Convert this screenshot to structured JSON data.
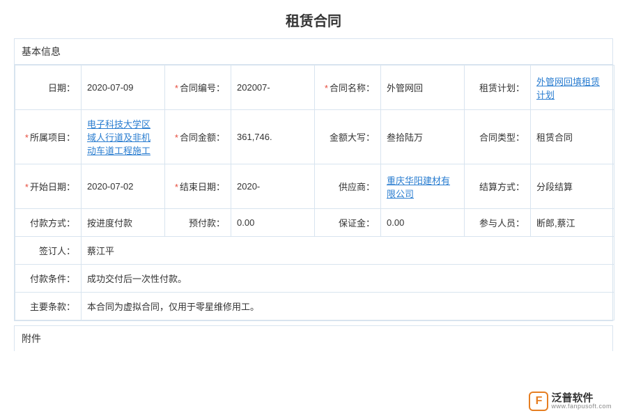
{
  "page": {
    "title": "租赁合同",
    "sections": {
      "basic": "基本信息",
      "attachment": "附件"
    }
  },
  "labels": {
    "date": "日期：",
    "contract_no": "合同编号：",
    "contract_name": "合同名称：",
    "lease_plan": "租赁计划：",
    "project": "所属项目：",
    "amount": "合同金额：",
    "amount_cn": "金额大写：",
    "contract_type": "合同类型：",
    "start_date": "开始日期：",
    "end_date": "结束日期：",
    "supplier": "供应商：",
    "settle_method": "结算方式：",
    "pay_method": "付款方式：",
    "prepay": "预付款：",
    "deposit": "保证金：",
    "participants": "参与人员：",
    "signer": "签订人：",
    "pay_terms": "付款条件：",
    "main_terms": "主要条款："
  },
  "required": {
    "contract_no": true,
    "contract_name": true,
    "project": true,
    "amount": true,
    "start_date": true,
    "end_date": true
  },
  "values": {
    "date": "2020-07-09",
    "contract_no": "202007-",
    "contract_name": "外管网回",
    "lease_plan": "外管网回填租赁计划",
    "project": "电子科技大学区域人行道及非机动车道工程施工",
    "amount": "361,746.",
    "amount_cn": "叁拾陆万",
    "contract_type": "租赁合同",
    "start_date": "2020-07-02",
    "end_date": "2020-",
    "supplier": "重庆华阳建材有限公司",
    "settle_method": "分段结算",
    "pay_method": "按进度付款",
    "prepay": "0.00",
    "deposit": "0.00",
    "participants": "断郎,蔡江",
    "signer": "蔡江平",
    "pay_terms": "成功交付后一次性付款。",
    "main_terms": "本合同为虚拟合同，仅用于零星维修用工。"
  },
  "links": {
    "lease_plan": true,
    "project": true,
    "supplier": true
  },
  "logo": {
    "cn": "泛普软件",
    "en": "www.fanpusoft.com"
  },
  "style": {
    "border_color": "#d8e4ef",
    "link_color": "#2a7dd0",
    "req_color": "#e74c3c",
    "title_fontsize": 20,
    "body_fontsize": 13
  }
}
